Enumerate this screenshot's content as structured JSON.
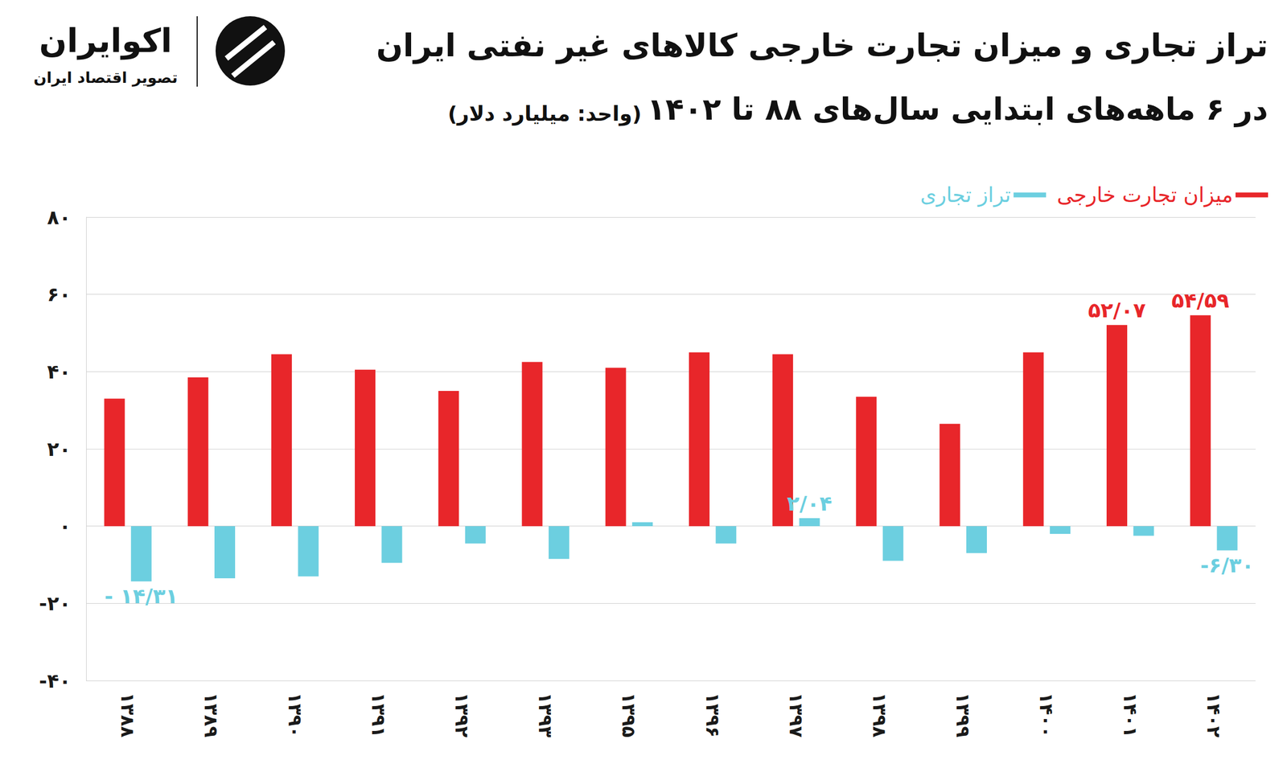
{
  "chart_data": {
    "type": "bar",
    "title": "تراز تجاری و میزان تجارت خارجی کالاهای غیر نفتی ایران",
    "subtitle": "در ۶ ماهه‌های ابتدایی سال‌های ۸۸ تا ۱۴۰۲",
    "unit": "(واحد: میلیارد دلار)",
    "brand": "اکوایران",
    "brand_tagline": "تصویر اقتصاد ایران",
    "categories": [
      "۱۳۸۸",
      "۱۳۸۹",
      "۱۳۹۰",
      "۱۳۹۱",
      "۱۳۹۲",
      "۱۳۹۳",
      "۱۳۹۵",
      "۱۳۹۶",
      "۱۳۹۷",
      "۱۳۹۸",
      "۱۳۹۹",
      "۱۴۰۰",
      "۱۴۰۱",
      "۱۴۰۲"
    ],
    "series": [
      {
        "name": "میزان تجارت خارجی",
        "color": "#e8262a",
        "values": [
          33,
          38.5,
          44.5,
          40.5,
          35,
          42.5,
          41,
          45,
          44.5,
          33.5,
          26.5,
          45,
          52.07,
          54.59
        ],
        "value_labels": [
          null,
          null,
          null,
          null,
          null,
          null,
          null,
          null,
          null,
          null,
          null,
          null,
          "۵۲/۰۷",
          "۵۴/۵۹"
        ]
      },
      {
        "name": "تراز تجاری",
        "color": "#6ccfe0",
        "values": [
          -14.31,
          -13.5,
          -13,
          -9.5,
          -4.5,
          -8.5,
          1,
          -4.5,
          2.04,
          -9,
          -7,
          -2,
          -2.5,
          -6.3
        ],
        "value_labels": [
          "- ۱۴/۳۱",
          null,
          null,
          null,
          null,
          null,
          null,
          null,
          "۲/۰۴",
          null,
          null,
          null,
          null,
          "-۶/۳۰"
        ]
      }
    ],
    "ylim": [
      -40,
      80
    ],
    "yticks": [
      {
        "value": -40,
        "label": "-۴۰"
      },
      {
        "value": -20,
        "label": "-۲۰"
      },
      {
        "value": 0,
        "label": "۰"
      },
      {
        "value": 20,
        "label": "۲۰"
      },
      {
        "value": 40,
        "label": "۴۰"
      },
      {
        "value": 60,
        "label": "۶۰"
      },
      {
        "value": 80,
        "label": "۸۰"
      }
    ],
    "grid": true,
    "legend": "upper right",
    "data_labels": true
  }
}
